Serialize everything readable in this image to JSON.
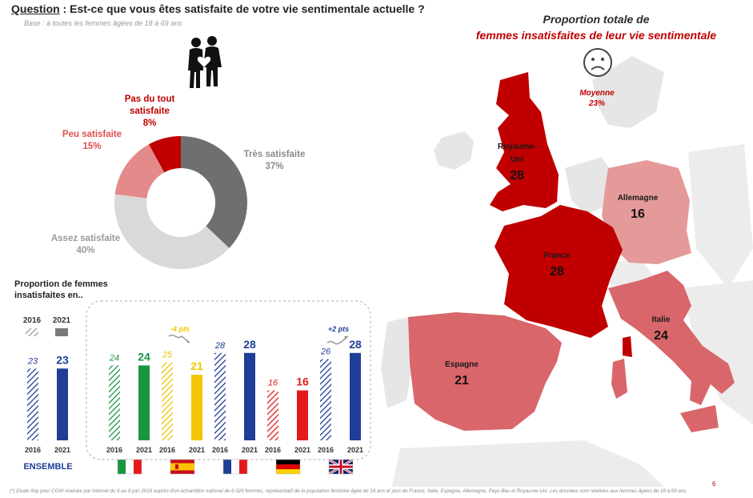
{
  "question": {
    "label": "Question",
    "text": " : Est-ce que vous êtes satisfaite de votre vie sentimentale actuelle ?"
  },
  "base": "Base :  à toutes les femmes âgées de 18 à 69 ans",
  "icons": {
    "couple": "couple-heart-icon",
    "sad": "sad-face-icon"
  },
  "donut": {
    "segments": [
      {
        "label_lines": [
          "Très satisfaite"
        ],
        "value": 37,
        "value_text": "37%",
        "color": "#6f6f6f",
        "label_color": "#8a8a8a"
      },
      {
        "label_lines": [
          "Assez satisfaite"
        ],
        "value": 40,
        "value_text": "40%",
        "color": "#d9d9d9",
        "label_color": "#9a9a9a"
      },
      {
        "label_lines": [
          "Peu satisfaite"
        ],
        "value": 15,
        "value_text": "15%",
        "color": "#e58a8a",
        "label_color": "#e04f4f"
      },
      {
        "label_lines": [
          "Pas du tout",
          "satisfaite"
        ],
        "value": 8,
        "value_text": "8%",
        "color": "#c00000",
        "label_color": "#c00000"
      }
    ]
  },
  "bars": {
    "title_lines": [
      "Proportion de femmes",
      "insatisfaites en.."
    ],
    "legend": {
      "year_a": "2016",
      "year_b": "2021"
    },
    "ensemble": {
      "label": "ENSEMBLE",
      "v2016": 23,
      "v2021": 23,
      "color": "#1f3e96",
      "label_color": "#1f3e96"
    },
    "countries": [
      {
        "name": "Italie",
        "flag": "flag-italy-icon",
        "v2016": 24,
        "v2021": 24,
        "color": "#1a9641",
        "change": ""
      },
      {
        "name": "Espagne",
        "flag": "flag-spain-icon",
        "v2016": 25,
        "v2021": 21,
        "color": "#f2c500",
        "change": "-4 pts",
        "change_color": "#f2c500"
      },
      {
        "name": "France",
        "flag": "flag-france-icon",
        "v2016": 28,
        "v2021": 28,
        "color": "#1f3e96",
        "change": ""
      },
      {
        "name": "Allemagne",
        "flag": "flag-germany-icon",
        "v2016": 16,
        "v2021": 16,
        "color": "#e31a1c",
        "change": ""
      },
      {
        "name": "Royaume-Uni",
        "flag": "flag-uk-icon",
        "v2016": 26,
        "v2021": 28,
        "color": "#1f3e96",
        "change": "+2 pts",
        "change_color": "#1f3e96"
      }
    ]
  },
  "map": {
    "title_line1": "Proportion totale de",
    "title_line2": "femmes insatisfaites de leur vie sentimentale",
    "moyenne_label": "Moyenne",
    "moyenne_value": "23%",
    "regions": [
      {
        "name_lines": [
          "Royaume-",
          "Uni"
        ],
        "value": "28"
      },
      {
        "name_lines": [
          "Allemagne"
        ],
        "value": "16"
      },
      {
        "name_lines": [
          "France"
        ],
        "value": "28"
      },
      {
        "name_lines": [
          "Italie"
        ],
        "value": "24"
      },
      {
        "name_lines": [
          "Espagne"
        ],
        "value": "21"
      }
    ]
  },
  "footnote": "(*) Etude Ifop pour CGW réalisée par internet du 6 au 9 juin 2016 auprès d'un échantillon national de 6 029 femmes, représentatif de la population féminine âgée de 18 ans et plus de France, Italie, Espagne, Allemagne, Pays-Bas et Royaume-Uni. Les données sont relatives aux femmes âgées de 18 à 69 ans.",
  "page_number": "6",
  "chart_data": [
    {
      "type": "pie",
      "categories": [
        "Très satisfaite",
        "Assez satisfaite",
        "Peu satisfaite",
        "Pas du tout satisfaite"
      ],
      "values": [
        37,
        40,
        15,
        8
      ],
      "title": ""
    },
    {
      "type": "bar",
      "title": "Proportion de femmes insatisfaites en..",
      "categories": [
        "ENSEMBLE",
        "Italie",
        "Espagne",
        "France",
        "Allemagne",
        "Royaume-Uni"
      ],
      "series": [
        {
          "name": "2016",
          "values": [
            23,
            24,
            25,
            28,
            16,
            26
          ]
        },
        {
          "name": "2021",
          "values": [
            23,
            24,
            21,
            28,
            16,
            28
          ]
        }
      ]
    },
    {
      "type": "table",
      "title": "Proportion totale de femmes insatisfaites de leur vie sentimentale",
      "categories": [
        "Royaume-Uni",
        "Allemagne",
        "France",
        "Italie",
        "Espagne"
      ],
      "values": [
        28,
        16,
        28,
        24,
        21
      ],
      "average": "23%"
    }
  ]
}
